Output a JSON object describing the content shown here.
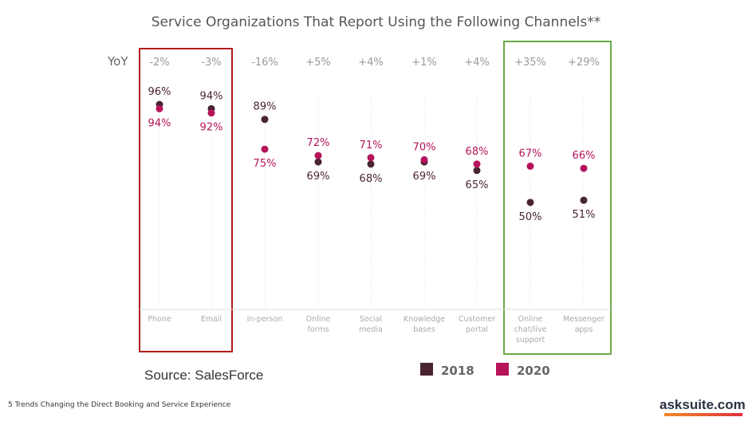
{
  "chart_data": {
    "type": "scatter",
    "title": "Service Organizations That Report Using the Following Channels**",
    "row_label": "YoY",
    "categories": [
      "Phone",
      "Email",
      "In-person",
      "Online forms",
      "Social media",
      "Knowledge bases",
      "Customer portal",
      "Online chat/live support",
      "Messenger apps"
    ],
    "category_lines": [
      [
        "Phone"
      ],
      [
        "Email"
      ],
      [
        "In-person"
      ],
      [
        "Online",
        "forms"
      ],
      [
        "Social",
        "media"
      ],
      [
        "Knowledge",
        "bases"
      ],
      [
        "Customer",
        "portal"
      ],
      [
        "Online",
        "chat/live",
        "support"
      ],
      [
        "Messenger",
        "apps"
      ]
    ],
    "yoy": [
      "-2%",
      "-3%",
      "-16%",
      "+5%",
      "+4%",
      "+1%",
      "+4%",
      "+35%",
      "+29%"
    ],
    "series": [
      {
        "name": "2018",
        "color": "#4a2430",
        "values": [
          96,
          94,
          89,
          69,
          68,
          69,
          65,
          50,
          51
        ]
      },
      {
        "name": "2020",
        "color": "#b5135a",
        "values": [
          94,
          92,
          75,
          72,
          71,
          70,
          68,
          67,
          66
        ]
      }
    ],
    "unit": "%",
    "legend_position": "bottom-right",
    "highlights": [
      {
        "categories": [
          "Phone",
          "Email"
        ],
        "color": "#b01c1c"
      },
      {
        "categories": [
          "Online chat/live support",
          "Messenger apps"
        ],
        "color": "#6aaa48"
      }
    ]
  },
  "source": "Source: SalesForce",
  "footer": "5 Trends Changing the Direct Booking and Service Experience",
  "logo": "asksuite.com"
}
